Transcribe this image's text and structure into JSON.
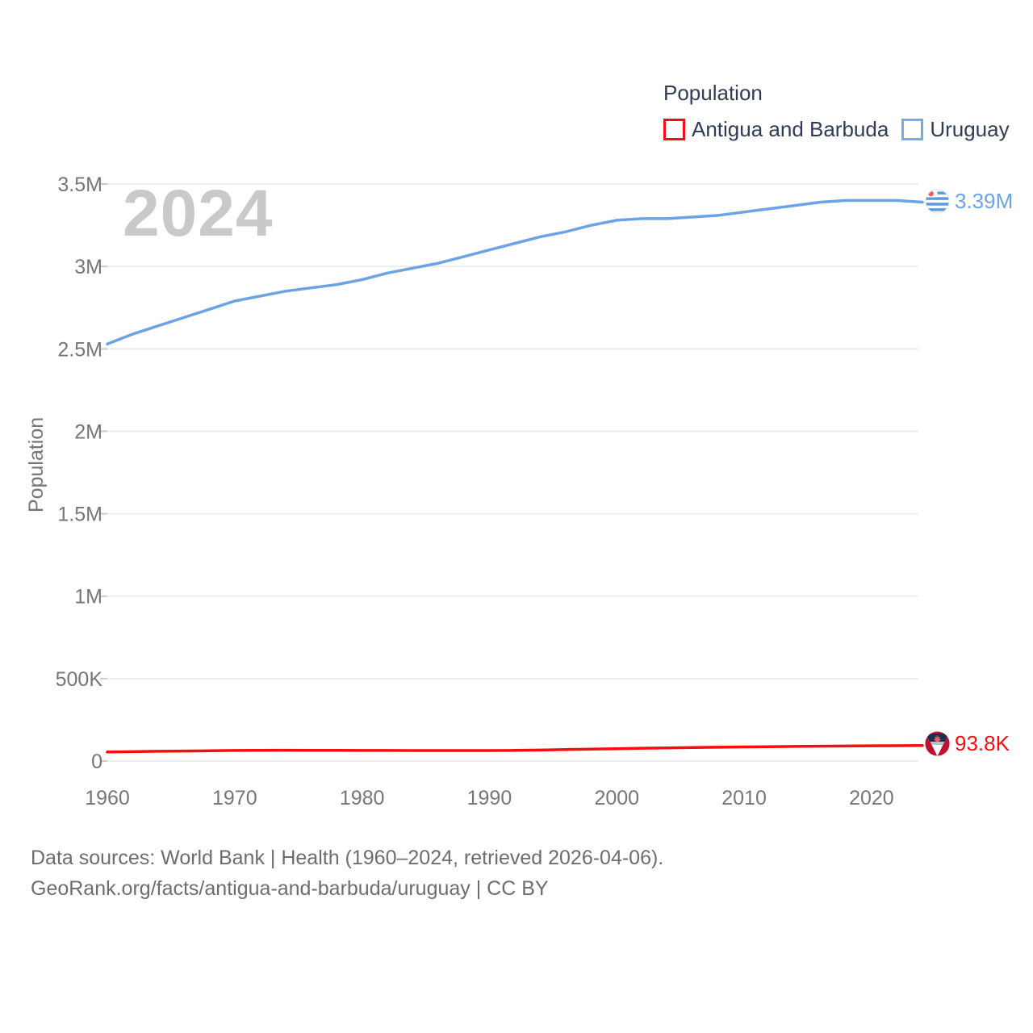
{
  "watermark": "2024",
  "legend": {
    "title": "Population",
    "items": [
      {
        "label": "Antigua and Barbuda",
        "color": "#f60d0d"
      },
      {
        "label": "Uruguay",
        "color": "#74aae8"
      }
    ]
  },
  "end_labels": {
    "uruguay": {
      "value": "3.39M",
      "flag": "uruguay-flag",
      "color": "#6ba4e6"
    },
    "antigua_and_barbuda": {
      "value": "93.8K",
      "flag": "antigua-and-barbuda-flag",
      "color": "#f60d0d"
    }
  },
  "source": {
    "line1": "Data sources: World Bank | Health (1960–2024, retrieved 2026-04-06).",
    "line2": "GeoRank.org/facts/antigua-and-barbuda/uruguay | CC BY"
  },
  "chart_data": {
    "type": "line",
    "title": "Population",
    "xlabel": "",
    "ylabel": "Population",
    "xlim": [
      1960,
      2024
    ],
    "ylim": [
      0,
      3500000
    ],
    "grid": true,
    "legend_position": "top-right",
    "x": [
      1960,
      1962,
      1964,
      1966,
      1968,
      1970,
      1972,
      1974,
      1976,
      1978,
      1980,
      1982,
      1984,
      1986,
      1988,
      1990,
      1992,
      1994,
      1996,
      1998,
      2000,
      2002,
      2004,
      2006,
      2008,
      2010,
      2012,
      2014,
      2016,
      2018,
      2020,
      2022,
      2024
    ],
    "series": [
      {
        "name": "Antigua and Barbuda",
        "color": "#f60d0d",
        "end_label": "93.8K",
        "values": [
          54700,
          57000,
          59000,
          60800,
          62400,
          64000,
          65000,
          65400,
          65200,
          64700,
          64300,
          63900,
          63600,
          63400,
          63400,
          63600,
          64800,
          66800,
          69300,
          72200,
          75100,
          77600,
          79900,
          82000,
          83900,
          85700,
          87200,
          88600,
          89900,
          91100,
          92700,
          93200,
          93800
        ]
      },
      {
        "name": "Uruguay",
        "color": "#6ba4e6",
        "end_label": "3.39M",
        "values": [
          2530000,
          2590000,
          2640000,
          2690000,
          2740000,
          2790000,
          2820000,
          2850000,
          2870000,
          2890000,
          2920000,
          2960000,
          2990000,
          3020000,
          3060000,
          3100000,
          3140000,
          3180000,
          3210000,
          3250000,
          3280000,
          3290000,
          3290000,
          3300000,
          3310000,
          3330000,
          3350000,
          3370000,
          3390000,
          3400000,
          3400000,
          3400000,
          3390000
        ]
      }
    ],
    "x_ticks": {
      "values": [
        1960,
        1970,
        1980,
        1990,
        2000,
        2010,
        2020
      ],
      "labels": [
        "1960",
        "1970",
        "1980",
        "1990",
        "2000",
        "2010",
        "2020"
      ]
    },
    "y_ticks": {
      "values": [
        0,
        500000,
        1000000,
        1500000,
        2000000,
        2500000,
        3000000,
        3500000
      ],
      "labels": [
        "0",
        "500K",
        "1M",
        "1.5M",
        "2M",
        "2.5M",
        "3M",
        "3.5M"
      ]
    }
  }
}
